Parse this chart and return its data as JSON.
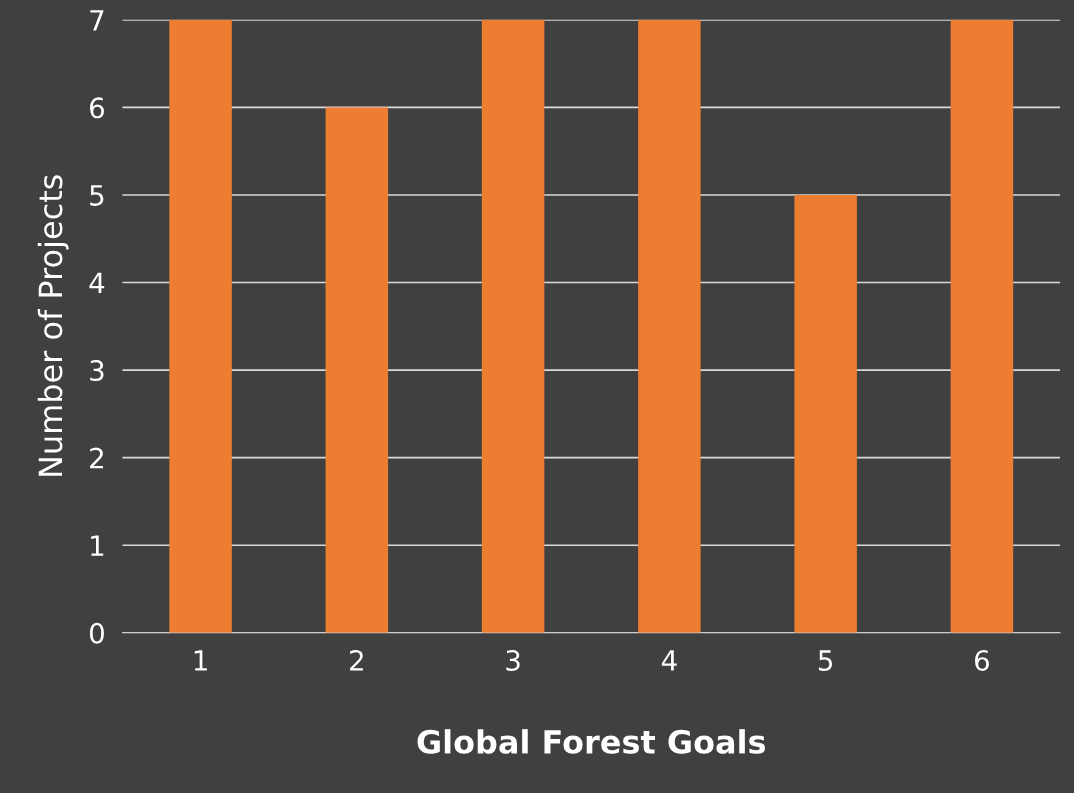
{
  "chart_data": {
    "type": "bar",
    "xlabel": "Global Forest Goals",
    "ylabel": "Number of Projects",
    "categories": [
      "1",
      "2",
      "3",
      "4",
      "5",
      "6"
    ],
    "series": [
      {
        "color": "#ed7d31",
        "values": [
          7,
          6,
          7,
          7,
          5,
          7
        ]
      }
    ],
    "ylim": [
      0,
      7
    ],
    "yticks": [
      0,
      1,
      2,
      3,
      4,
      5,
      6,
      7
    ],
    "grid": "y"
  }
}
